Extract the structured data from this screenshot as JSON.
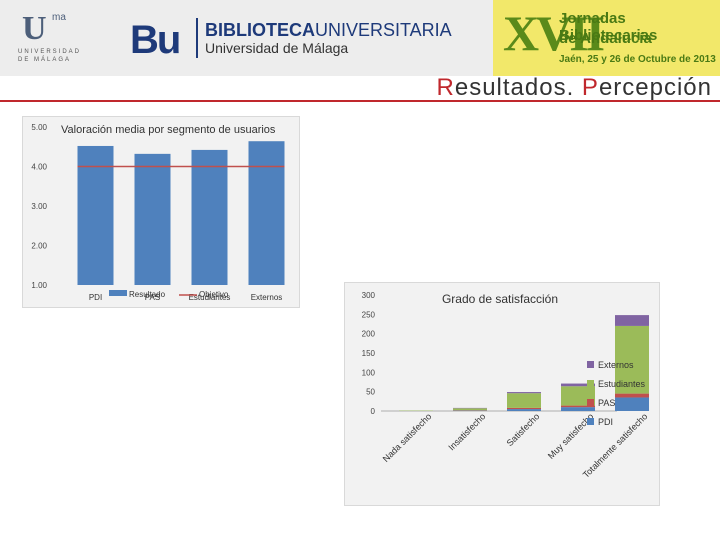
{
  "header": {
    "uma_mark": "U",
    "uma_sup": "ma",
    "uma_line1": "UNIVERSIDAD",
    "uma_line2": "DE MÁLAGA",
    "bu_mark": "Bu",
    "bib_title_bold": "BIBLIOTECA",
    "bib_title_rest": "UNIVERSITARIA",
    "bib_sub": "Universidad de Málaga",
    "jornadas_numeral": "XVII",
    "jornadas_line1": "Jornadas Bibliotecarias",
    "jornadas_line2": "de Andalucía",
    "jornadas_line3": "Jaén, 25 y 26 de Octubre de 2013"
  },
  "slide_title": {
    "first_cap": "R",
    "first_rest": "esultados. ",
    "second_cap": "P",
    "second_rest": "ercepción"
  },
  "colors": {
    "bar_blue": "#4f81bd",
    "target_red": "#c0504d",
    "pdi": "#4f81bd",
    "pas": "#c0504d",
    "estudiantes": "#9bbb59",
    "externos": "#8064a2"
  },
  "chart_data": [
    {
      "type": "bar",
      "title": "Valoración media por segmento de usuarios",
      "categories": [
        "PDI",
        "PAS",
        "Estudiantes",
        "Externos"
      ],
      "series": [
        {
          "name": "Resultado",
          "values": [
            4.52,
            4.32,
            4.42,
            4.64
          ]
        },
        {
          "name": "Objetivo",
          "values": [
            4.0,
            4.0,
            4.0,
            4.0
          ]
        }
      ],
      "y_ticks": [
        "5.00",
        "4.00",
        "3.00",
        "2.00",
        "1.00"
      ],
      "ylim": [
        1,
        5
      ],
      "grid": false,
      "legend_position": "bottom"
    },
    {
      "type": "bar",
      "stacked": true,
      "title": "Grado de satisfacción",
      "categories": [
        "Nada satisfecho",
        "Insatisfecho",
        "Satisfecho",
        "Muy satisfecho",
        "Totalmente satisfecho"
      ],
      "series": [
        {
          "name": "PDI",
          "values": [
            0,
            1,
            5,
            10,
            35
          ]
        },
        {
          "name": "PAS",
          "values": [
            0,
            1,
            3,
            4,
            10
          ]
        },
        {
          "name": "Estudiantes",
          "values": [
            1,
            5,
            38,
            50,
            175
          ]
        },
        {
          "name": "Externos",
          "values": [
            0,
            1,
            3,
            7,
            28
          ]
        }
      ],
      "y_ticks": [
        "300",
        "250",
        "200",
        "150",
        "100",
        "50",
        "0"
      ],
      "ylim": [
        0,
        300
      ],
      "grid": false,
      "legend_position": "right"
    }
  ]
}
